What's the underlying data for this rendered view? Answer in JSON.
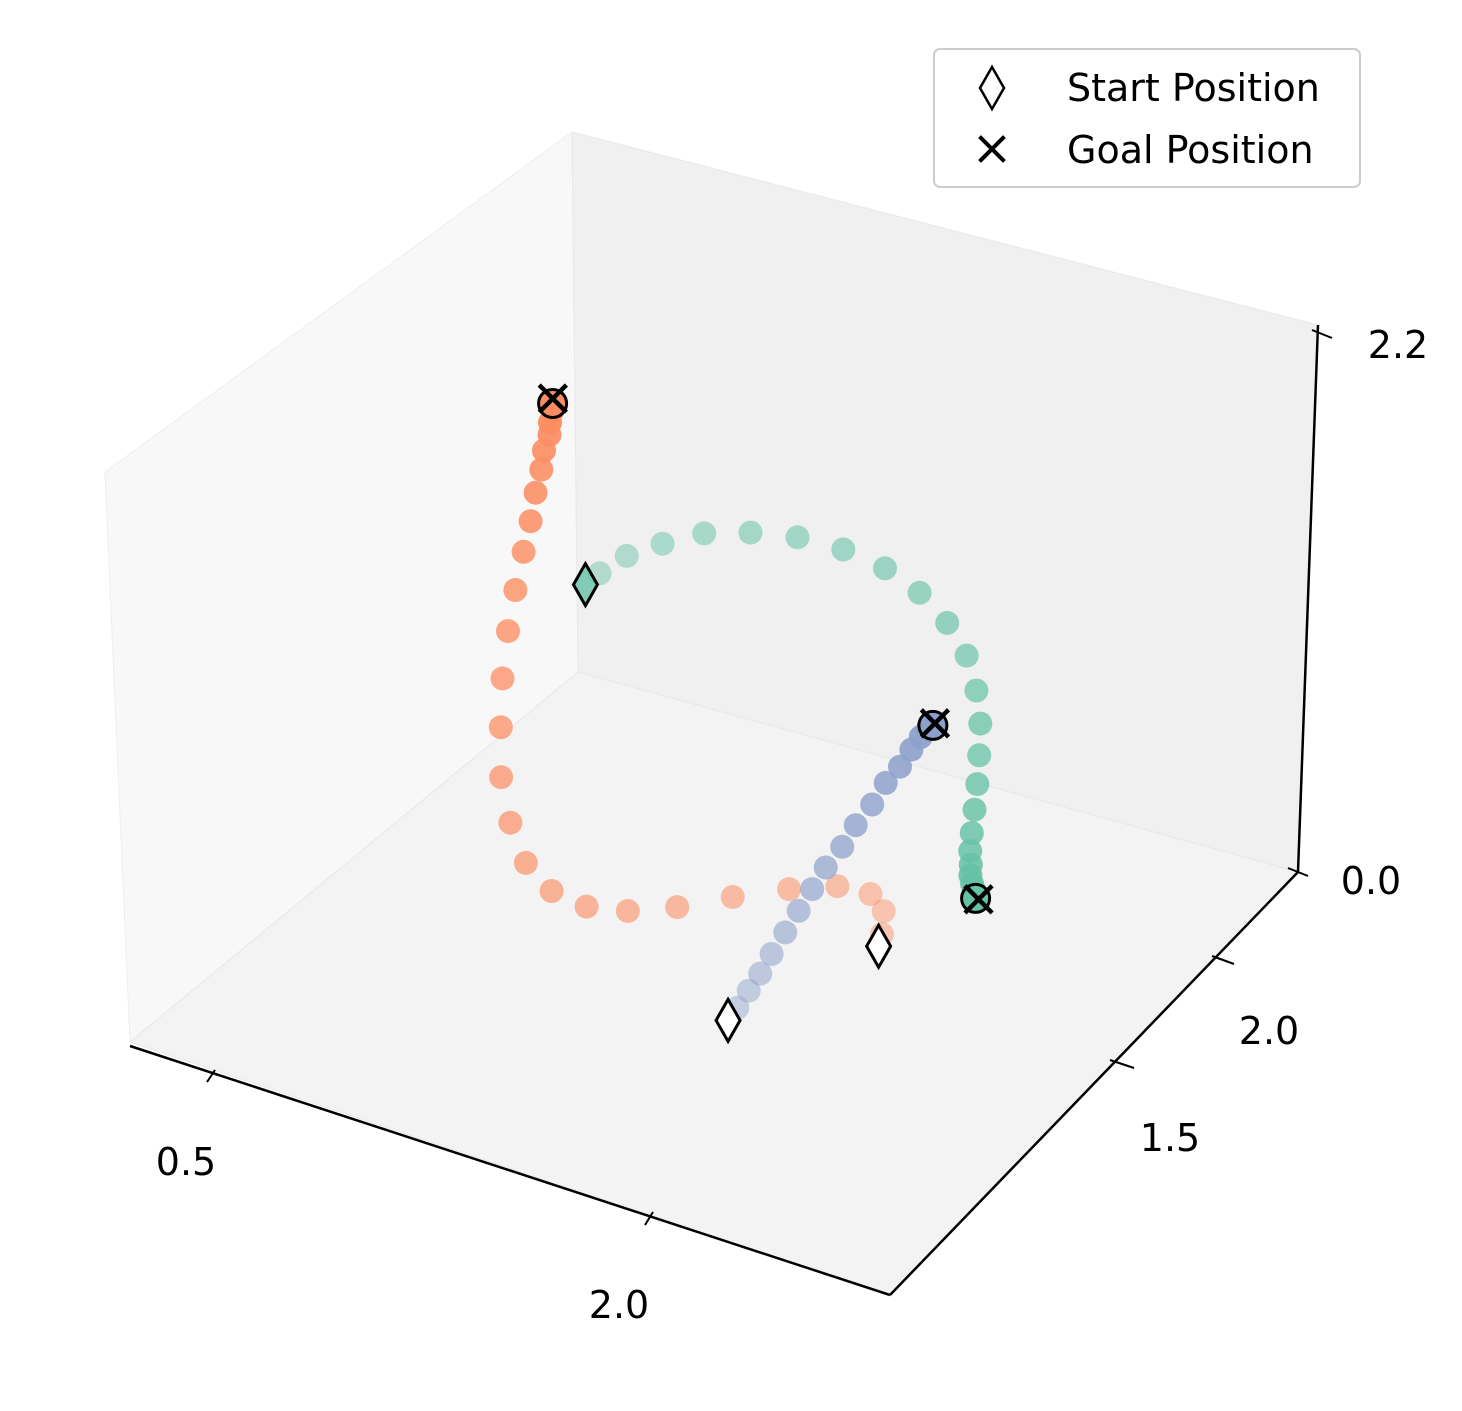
{
  "chart_data": {
    "type": "scatter",
    "projection": "3d",
    "grid": false,
    "legend_placement": "top-right",
    "x_ticks": [
      "0.5",
      "2.0"
    ],
    "y_ticks": [
      "1.5",
      "2.0"
    ],
    "z_ticks": [
      "0.0",
      "2.2"
    ],
    "xlim": [
      0.3,
      2.8
    ],
    "ylim": [
      1.0,
      2.4
    ],
    "zlim": [
      0.0,
      2.2
    ],
    "legend": [
      {
        "label": "Start Position",
        "marker": "diamond"
      },
      {
        "label": "Goal Position",
        "marker": "x"
      }
    ],
    "colors": {
      "teal": "#66c2a5",
      "orange": "#fc8d62",
      "blue": "#8da0cb"
    },
    "trajectories": [
      {
        "color": "teal",
        "start": [
          0.8,
          1.7,
          1.4
        ],
        "goal": [
          2.5,
          1.2,
          1.2
        ],
        "points": [
          [
            0.82,
            1.74,
            1.42
          ],
          [
            0.87,
            1.8,
            1.46
          ],
          [
            0.95,
            1.86,
            1.49
          ],
          [
            1.05,
            1.92,
            1.52
          ],
          [
            1.18,
            1.96,
            1.54
          ],
          [
            1.32,
            1.99,
            1.55
          ],
          [
            1.47,
            2.0,
            1.55
          ],
          [
            1.62,
            1.99,
            1.54
          ],
          [
            1.76,
            1.96,
            1.52
          ],
          [
            1.89,
            1.91,
            1.49
          ],
          [
            2.0,
            1.85,
            1.45
          ],
          [
            2.09,
            1.77,
            1.41
          ],
          [
            2.16,
            1.69,
            1.37
          ],
          [
            2.22,
            1.6,
            1.34
          ],
          [
            2.27,
            1.52,
            1.31
          ],
          [
            2.31,
            1.45,
            1.28
          ],
          [
            2.35,
            1.38,
            1.26
          ],
          [
            2.38,
            1.33,
            1.24
          ],
          [
            2.41,
            1.29,
            1.23
          ],
          [
            2.43,
            1.26,
            1.22
          ],
          [
            2.45,
            1.24,
            1.21
          ],
          [
            2.47,
            1.22,
            1.21
          ],
          [
            2.48,
            1.21,
            1.2
          ],
          [
            2.49,
            1.2,
            1.2
          ]
        ]
      },
      {
        "color": "orange",
        "start": [
          2.3,
          1.0,
          1.1
        ],
        "goal": [
          0.6,
          1.8,
          2.0
        ],
        "points": [
          [
            2.29,
            1.03,
            1.12
          ],
          [
            2.26,
            1.08,
            1.16
          ],
          [
            2.2,
            1.1,
            1.19
          ],
          [
            2.1,
            1.08,
            1.2
          ],
          [
            1.97,
            1.03,
            1.18
          ],
          [
            1.82,
            0.97,
            1.14
          ],
          [
            1.66,
            0.93,
            1.07
          ],
          [
            1.5,
            0.92,
            1.0
          ],
          [
            1.34,
            0.95,
            0.93
          ],
          [
            1.18,
            1.01,
            0.88
          ],
          [
            1.03,
            1.1,
            0.86
          ],
          [
            0.9,
            1.21,
            0.88
          ],
          [
            0.79,
            1.32,
            0.93
          ],
          [
            0.71,
            1.43,
            1.01
          ],
          [
            0.65,
            1.52,
            1.11
          ],
          [
            0.61,
            1.6,
            1.22
          ],
          [
            0.59,
            1.66,
            1.33
          ],
          [
            0.58,
            1.71,
            1.44
          ],
          [
            0.58,
            1.74,
            1.54
          ],
          [
            0.58,
            1.76,
            1.64
          ],
          [
            0.59,
            1.77,
            1.73
          ],
          [
            0.59,
            1.78,
            1.8
          ],
          [
            0.6,
            1.79,
            1.86
          ],
          [
            0.6,
            1.79,
            1.91
          ],
          [
            0.6,
            1.8,
            1.95
          ],
          [
            0.6,
            1.8,
            1.98
          ]
        ]
      },
      {
        "color": "blue",
        "start": [
          1.8,
          1.0,
          0.6
        ],
        "goal": [
          2.0,
          1.7,
          1.3
        ],
        "points": [
          [
            1.81,
            1.03,
            0.63
          ],
          [
            1.82,
            1.07,
            0.67
          ],
          [
            1.83,
            1.11,
            0.71
          ],
          [
            1.84,
            1.15,
            0.76
          ],
          [
            1.85,
            1.2,
            0.81
          ],
          [
            1.86,
            1.25,
            0.86
          ],
          [
            1.87,
            1.3,
            0.91
          ],
          [
            1.88,
            1.35,
            0.96
          ],
          [
            1.9,
            1.4,
            1.01
          ],
          [
            1.91,
            1.45,
            1.06
          ],
          [
            1.93,
            1.5,
            1.11
          ],
          [
            1.94,
            1.55,
            1.16
          ],
          [
            1.96,
            1.59,
            1.2
          ],
          [
            1.97,
            1.63,
            1.24
          ],
          [
            1.98,
            1.66,
            1.27
          ],
          [
            1.99,
            1.68,
            1.29
          ],
          [
            2.0,
            1.69,
            1.3
          ]
        ]
      }
    ]
  }
}
